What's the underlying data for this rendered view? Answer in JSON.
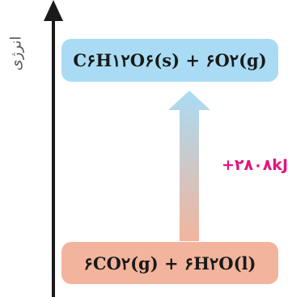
{
  "diagram": {
    "axis_label": "انرژی",
    "top_box": {
      "equation": "C۶H۱۲O۶(s) + ۶O۲(g)",
      "color": "#a9dcf4"
    },
    "bottom_box": {
      "equation": "۶CO۲(g) + ۶H۲O(l)",
      "color": "#f2b49c"
    },
    "energy_change": "+۲۸۰۸kJ",
    "energy_color": "#e2147d",
    "arrow_gradient": [
      "#a9dcf4",
      "#f2b49c"
    ]
  }
}
